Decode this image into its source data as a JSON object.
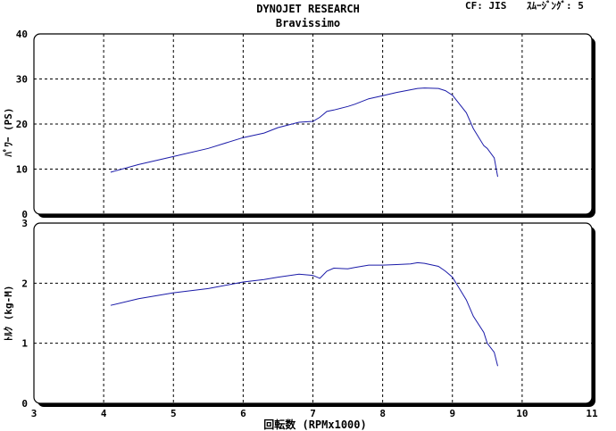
{
  "header": {
    "title": "DYNOJET  RESEARCH",
    "subtitle": "Bravissimo",
    "correction": "CF: JIS",
    "smoothing": "ｽﾑｰｼﾞﾝｸﾞ: 5"
  },
  "chart_data": [
    {
      "type": "line",
      "ylabel": "ﾊﾟﾜｰ (PS)",
      "xlim": [
        3,
        11
      ],
      "ylim": [
        0,
        40
      ],
      "yticks": [
        "0",
        "10",
        "20",
        "30",
        "40"
      ],
      "grid": true,
      "color": "#1a1aa8",
      "x": [
        4.1,
        4.5,
        5.0,
        5.5,
        6.0,
        6.3,
        6.5,
        6.8,
        7.0,
        7.1,
        7.2,
        7.3,
        7.5,
        7.6,
        7.8,
        8.0,
        8.2,
        8.4,
        8.5,
        8.6,
        8.8,
        8.9,
        9.0,
        9.2,
        9.3,
        9.45,
        9.5,
        9.6,
        9.65
      ],
      "y": [
        9.3,
        11.0,
        12.8,
        14.6,
        17.0,
        18.0,
        19.2,
        20.4,
        20.6,
        21.5,
        22.8,
        23.1,
        23.9,
        24.4,
        25.6,
        26.3,
        27.0,
        27.6,
        27.9,
        28.0,
        27.9,
        27.4,
        26.4,
        22.5,
        19.0,
        15.2,
        14.6,
        12.5,
        8.3
      ]
    },
    {
      "type": "line",
      "ylabel": "ﾄﾙｸ (kg-M)",
      "xlabel": "回転数 (RPMx1000)",
      "xlim": [
        3,
        11
      ],
      "ylim": [
        0,
        3
      ],
      "xticks": [
        "3",
        "4",
        "5",
        "6",
        "7",
        "8",
        "9",
        "10",
        "11"
      ],
      "yticks": [
        "0",
        "1",
        "2",
        "3"
      ],
      "grid": true,
      "color": "#1a1aa8",
      "x": [
        4.1,
        4.5,
        5.0,
        5.5,
        6.0,
        6.3,
        6.5,
        6.8,
        7.0,
        7.1,
        7.2,
        7.3,
        7.5,
        7.6,
        7.8,
        8.0,
        8.2,
        8.4,
        8.5,
        8.6,
        8.8,
        8.9,
        9.0,
        9.2,
        9.3,
        9.45,
        9.5,
        9.6,
        9.65
      ],
      "y": [
        1.63,
        1.74,
        1.84,
        1.91,
        2.02,
        2.06,
        2.1,
        2.15,
        2.13,
        2.08,
        2.2,
        2.25,
        2.24,
        2.26,
        2.3,
        2.3,
        2.31,
        2.32,
        2.34,
        2.33,
        2.28,
        2.2,
        2.1,
        1.72,
        1.45,
        1.18,
        1.0,
        0.85,
        0.62
      ]
    }
  ]
}
